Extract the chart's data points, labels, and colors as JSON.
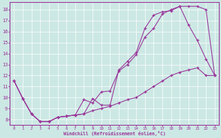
{
  "xlabel": "Windchill (Refroidissement éolien,°C)",
  "bg_color": "#cce8e4",
  "line_color": "#993399",
  "xlim": [
    -0.5,
    23.5
  ],
  "ylim": [
    7.5,
    18.7
  ],
  "xticks": [
    0,
    1,
    2,
    3,
    4,
    5,
    6,
    7,
    8,
    9,
    10,
    11,
    12,
    13,
    14,
    15,
    16,
    17,
    18,
    19,
    20,
    21,
    22,
    23
  ],
  "yticks": [
    8,
    9,
    10,
    11,
    12,
    13,
    14,
    15,
    16,
    17,
    18
  ],
  "line1_x": [
    0,
    1,
    2,
    3,
    4,
    5,
    6,
    7,
    8,
    9,
    10,
    11,
    12,
    13,
    14,
    15,
    16,
    17,
    18,
    19,
    20,
    21,
    22,
    23
  ],
  "line1_y": [
    11.5,
    9.9,
    8.5,
    7.8,
    7.8,
    8.2,
    8.3,
    8.4,
    9.8,
    9.5,
    10.5,
    10.6,
    12.4,
    13.0,
    13.9,
    15.5,
    16.3,
    17.6,
    18.0,
    18.3,
    18.3,
    18.3,
    18.0,
    12.0
  ],
  "line2_x": [
    0,
    1,
    2,
    3,
    4,
    5,
    6,
    7,
    8,
    9,
    10,
    11,
    12,
    13,
    14,
    15,
    16,
    17,
    18,
    19,
    20,
    21,
    22,
    23
  ],
  "line2_y": [
    11.5,
    9.9,
    8.5,
    7.8,
    7.8,
    8.2,
    8.3,
    8.4,
    8.5,
    9.9,
    9.3,
    9.3,
    12.5,
    13.3,
    14.1,
    16.3,
    17.5,
    17.8,
    17.9,
    18.3,
    16.6,
    15.2,
    13.5,
    12.0
  ],
  "line3_x": [
    0,
    1,
    2,
    3,
    4,
    5,
    6,
    7,
    8,
    9,
    10,
    11,
    12,
    13,
    14,
    15,
    16,
    17,
    18,
    19,
    20,
    21,
    22,
    23
  ],
  "line3_y": [
    11.5,
    9.9,
    8.5,
    7.8,
    7.8,
    8.2,
    8.3,
    8.4,
    8.5,
    8.8,
    9.0,
    9.2,
    9.5,
    9.8,
    10.0,
    10.5,
    11.0,
    11.5,
    12.0,
    12.3,
    12.5,
    12.7,
    12.0,
    12.0
  ]
}
